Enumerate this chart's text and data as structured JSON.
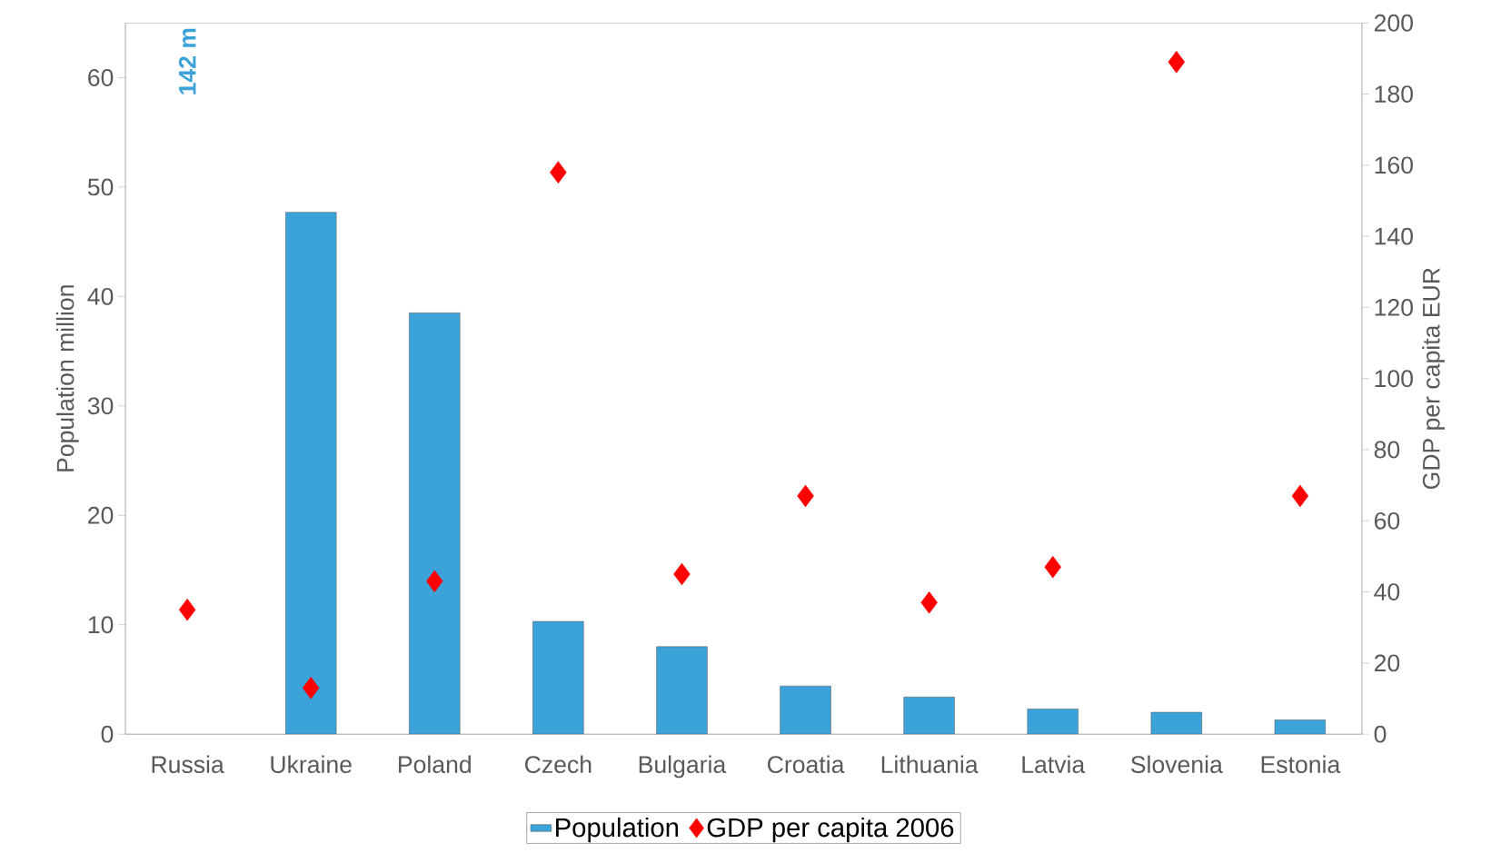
{
  "chart_data": {
    "type": "bar",
    "categories": [
      "Russia",
      "Ukraine",
      "Poland",
      "Czech",
      "Bulgaria",
      "Croatia",
      "Lithuania",
      "Latvia",
      "Slovenia",
      "Estonia"
    ],
    "ylabel": "Population million",
    "y2label": "GDP per capita EUR",
    "ylim": [
      0,
      65
    ],
    "yticks": [
      0,
      10,
      20,
      30,
      40,
      50,
      60
    ],
    "y2lim": [
      0,
      200
    ],
    "y2ticks": [
      0,
      20,
      40,
      60,
      80,
      100,
      120,
      140,
      160,
      180,
      200
    ],
    "legend": "bottom",
    "annotations": [
      "142 m"
    ],
    "series": [
      {
        "name": "Population",
        "type": "bar",
        "color": "#3ba3d9",
        "values": [
          null,
          47.7,
          38.5,
          10.3,
          8.0,
          4.4,
          3.4,
          2.3,
          2.0,
          1.3
        ]
      },
      {
        "name": "GDP per capita 2006",
        "type": "scatter",
        "axis": "y2",
        "marker": "diamond",
        "color": "#ff0000",
        "values": [
          35,
          13,
          43,
          158,
          45,
          67,
          37,
          47,
          189,
          67
        ]
      }
    ]
  }
}
